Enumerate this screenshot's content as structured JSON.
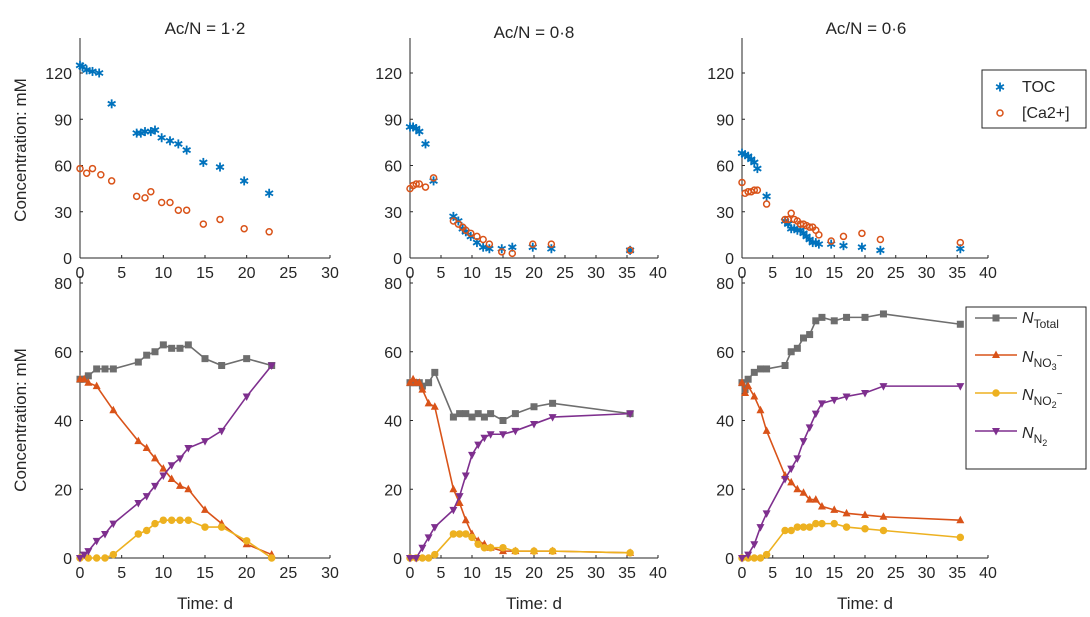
{
  "colors": {
    "toc": "#0072BD",
    "ca": "#D95319",
    "ntotal": "#6E6E6E",
    "nno3": "#D95319",
    "nno2": "#EDB120",
    "nn2": "#7E2F8E"
  },
  "legend_top": {
    "toc": "TOC",
    "ca": "[Ca2+]"
  },
  "legend_bottom": {
    "ntotal": {
      "main": "N",
      "sub": "Total",
      "sup": ""
    },
    "nno3": {
      "main": "N",
      "sub": "NO",
      "subsub": "3",
      "sup": "−"
    },
    "nno2": {
      "main": "N",
      "sub": "NO",
      "subsub": "2",
      "sup": "−"
    },
    "nn2": {
      "main": "N",
      "sub": "N",
      "subsub": "2",
      "sup": ""
    }
  },
  "y_label": "Concentration: mM",
  "x_label": "Time: d",
  "chart_data": [
    {
      "type": "scatter",
      "title": "Ac/N = 1·2",
      "xlim": [
        0,
        30
      ],
      "xticks": [
        0,
        5,
        10,
        15,
        20,
        25,
        30
      ],
      "ylim": [
        0,
        140
      ],
      "yticks": [
        0,
        30,
        60,
        90,
        120
      ],
      "series": [
        {
          "name": "TOC",
          "marker": "asterisk",
          "color": "toc",
          "x": [
            0,
            0.3,
            0.8,
            1.5,
            2.3,
            3.8,
            6.8,
            7.3,
            7.8,
            8.5,
            9,
            9.8,
            10.8,
            11.8,
            12.8,
            14.8,
            16.8,
            19.7,
            22.7
          ],
          "y": [
            125,
            124,
            122,
            121,
            120,
            100,
            81,
            81,
            82,
            82,
            83,
            78,
            76,
            74,
            70,
            62,
            59,
            50,
            42
          ]
        },
        {
          "name": "[Ca2+]",
          "marker": "circle",
          "color": "ca",
          "x": [
            0,
            0.8,
            1.5,
            2.5,
            3.8,
            6.8,
            7.8,
            8.5,
            9.8,
            10.8,
            11.8,
            12.8,
            14.8,
            16.8,
            19.7,
            22.7
          ],
          "y": [
            58,
            55,
            58,
            54,
            50,
            40,
            39,
            43,
            36,
            36,
            31,
            31,
            22,
            25,
            19,
            17
          ]
        }
      ]
    },
    {
      "type": "scatter",
      "title": "Ac/N = 0·8",
      "xlim": [
        0,
        40
      ],
      "xticks": [
        0,
        5,
        10,
        15,
        20,
        25,
        30,
        35,
        40
      ],
      "ylim": [
        0,
        140
      ],
      "yticks": [
        0,
        30,
        60,
        90,
        120
      ],
      "series": [
        {
          "name": "TOC",
          "marker": "asterisk",
          "color": "toc",
          "x": [
            0,
            0.5,
            1,
            1.5,
            2.5,
            3.8,
            7,
            7.8,
            8.5,
            9,
            9.8,
            10.8,
            11.8,
            12.8,
            14.8,
            16.5,
            19.8,
            22.8,
            35.5
          ],
          "y": [
            85,
            85,
            84,
            82,
            74,
            50,
            27,
            24,
            19,
            17,
            14,
            10,
            7,
            6,
            6,
            7,
            7,
            6,
            5
          ]
        },
        {
          "name": "[Ca2+]",
          "marker": "circle",
          "color": "ca",
          "x": [
            0,
            0.5,
            1,
            1.5,
            2.5,
            3.8,
            7,
            7.8,
            8.5,
            9,
            9.8,
            10.8,
            11.8,
            12.8,
            14.8,
            16.5,
            19.8,
            22.8,
            35.5
          ],
          "y": [
            45,
            47,
            48,
            48,
            46,
            52,
            24,
            22,
            20,
            18,
            16,
            14,
            12,
            9,
            4,
            3,
            9,
            9,
            5
          ]
        }
      ]
    },
    {
      "type": "scatter",
      "title": "Ac/N = 0·6",
      "xlim": [
        0,
        40
      ],
      "xticks": [
        0,
        5,
        10,
        15,
        20,
        25,
        30,
        35,
        40
      ],
      "ylim": [
        0,
        140
      ],
      "yticks": [
        0,
        30,
        60,
        90,
        120
      ],
      "series": [
        {
          "name": "TOC",
          "marker": "asterisk",
          "color": "toc",
          "x": [
            0,
            0.5,
            1,
            1.5,
            2,
            2.5,
            4,
            7,
            7.5,
            8,
            8.5,
            9,
            9.5,
            10,
            10.5,
            11,
            11.5,
            12,
            12.5,
            14.5,
            16.5,
            19.5,
            22.5,
            35.5
          ],
          "y": [
            68,
            67,
            66,
            64,
            62,
            58,
            40,
            24,
            22,
            19,
            19,
            18,
            18,
            16,
            14,
            12,
            10,
            10,
            9,
            9,
            8,
            7,
            5,
            6
          ]
        },
        {
          "name": "[Ca2+]",
          "marker": "circle",
          "color": "ca",
          "x": [
            0,
            0.5,
            1,
            1.5,
            2,
            2.5,
            4,
            7,
            7.5,
            8,
            8.5,
            9,
            9.5,
            10,
            10.5,
            11,
            11.5,
            12,
            12.5,
            14.5,
            16.5,
            19.5,
            22.5,
            35.5
          ],
          "y": [
            49,
            42,
            43,
            43,
            44,
            44,
            35,
            25,
            25,
            29,
            25,
            24,
            22,
            22,
            21,
            20,
            20,
            18,
            15,
            11,
            14,
            16,
            12,
            10
          ]
        }
      ]
    },
    {
      "type": "line",
      "title": "",
      "xlim": [
        0,
        30
      ],
      "xticks": [
        0,
        5,
        10,
        15,
        20,
        25,
        30
      ],
      "ylim": [
        0,
        80
      ],
      "yticks": [
        0,
        20,
        40,
        60,
        80
      ],
      "series": [
        {
          "name": "N_Total",
          "marker": "square",
          "color": "ntotal",
          "x": [
            0,
            0.5,
            1,
            2,
            3,
            4,
            7,
            8,
            9,
            10,
            11,
            12,
            13,
            15,
            17,
            20,
            23
          ],
          "y": [
            52,
            52,
            53,
            55,
            55,
            55,
            57,
            59,
            60,
            62,
            61,
            61,
            62,
            58,
            56,
            58,
            56
          ]
        },
        {
          "name": "N_NO3-",
          "marker": "triangle-up",
          "color": "nno3",
          "x": [
            0,
            0.5,
            1,
            2,
            4,
            7,
            8,
            9,
            10,
            11,
            12,
            13,
            15,
            17,
            20,
            23
          ],
          "y": [
            52,
            52,
            51,
            50,
            43,
            34,
            32,
            29,
            26,
            23,
            21,
            20,
            14,
            10,
            4,
            1
          ]
        },
        {
          "name": "N_NO2-",
          "marker": "circle",
          "color": "nno2",
          "x": [
            0,
            1,
            2,
            3,
            4,
            7,
            8,
            9,
            10,
            11,
            12,
            13,
            15,
            17,
            20,
            23
          ],
          "y": [
            0,
            0,
            0,
            0,
            1,
            7,
            8,
            10,
            11,
            11,
            11,
            11,
            9,
            9,
            5,
            0
          ]
        },
        {
          "name": "N_N2",
          "marker": "triangle-down",
          "color": "nn2",
          "x": [
            0,
            0.5,
            1,
            2,
            3,
            4,
            7,
            8,
            9,
            10,
            11,
            12,
            13,
            15,
            17,
            20,
            23
          ],
          "y": [
            0,
            1,
            2,
            5,
            7,
            10,
            16,
            18,
            21,
            24,
            27,
            29,
            32,
            34,
            37,
            47,
            56
          ]
        }
      ]
    },
    {
      "type": "line",
      "title": "",
      "xlim": [
        0,
        40
      ],
      "xticks": [
        0,
        5,
        10,
        15,
        20,
        25,
        30,
        35,
        40
      ],
      "ylim": [
        0,
        80
      ],
      "yticks": [
        0,
        20,
        40,
        60,
        80
      ],
      "series": [
        {
          "name": "N_Total",
          "marker": "square",
          "color": "ntotal",
          "x": [
            0,
            0.5,
            1,
            1.5,
            2,
            3,
            4,
            7,
            8,
            9,
            10,
            11,
            12,
            13,
            15,
            17,
            20,
            23,
            35.5
          ],
          "y": [
            51,
            51,
            51,
            51,
            50,
            51,
            54,
            41,
            42,
            42,
            41,
            42,
            41,
            42,
            40,
            42,
            44,
            45,
            42
          ]
        },
        {
          "name": "N_NO3-",
          "marker": "triangle-up",
          "color": "nno3",
          "x": [
            0,
            0.5,
            1,
            1.5,
            2,
            3,
            4,
            7,
            8,
            9,
            10,
            11,
            12,
            13,
            15,
            17,
            20,
            23,
            35.5
          ],
          "y": [
            51,
            52,
            51,
            51,
            49,
            45,
            44,
            20,
            16,
            11,
            7,
            5,
            4,
            3,
            2,
            2,
            2,
            2,
            1.5
          ]
        },
        {
          "name": "N_NO2-",
          "marker": "circle",
          "color": "nno2",
          "x": [
            0,
            1,
            2,
            3,
            4,
            7,
            8,
            9,
            10,
            11,
            12,
            13,
            15,
            17,
            20,
            23,
            35.5
          ],
          "y": [
            0,
            0,
            0,
            0,
            1,
            7,
            7,
            7,
            6,
            4,
            3,
            3,
            3,
            2,
            2,
            2,
            1.5
          ]
        },
        {
          "name": "N_N2",
          "marker": "triangle-down",
          "color": "nn2",
          "x": [
            0,
            1,
            2,
            3,
            4,
            7,
            8,
            9,
            10,
            11,
            12,
            13,
            15,
            17,
            20,
            23,
            35.5
          ],
          "y": [
            0,
            0,
            3,
            6,
            9,
            14,
            18,
            24,
            30,
            33,
            35,
            36,
            36,
            37,
            39,
            41,
            42
          ]
        }
      ]
    },
    {
      "type": "line",
      "title": "",
      "xlim": [
        0,
        40
      ],
      "xticks": [
        0,
        5,
        10,
        15,
        20,
        25,
        30,
        35,
        40
      ],
      "ylim": [
        0,
        80
      ],
      "yticks": [
        0,
        20,
        40,
        60,
        80
      ],
      "series": [
        {
          "name": "N_Total",
          "marker": "square",
          "color": "ntotal",
          "x": [
            0,
            0.5,
            1,
            2,
            3,
            4,
            7,
            8,
            9,
            10,
            11,
            12,
            13,
            15,
            17,
            20,
            23,
            35.5
          ],
          "y": [
            51,
            49,
            52,
            54,
            55,
            55,
            56,
            60,
            61,
            64,
            65,
            69,
            70,
            69,
            70,
            70,
            71,
            68
          ]
        },
        {
          "name": "N_NO3-",
          "marker": "triangle-up",
          "color": "nno3",
          "x": [
            0,
            0.5,
            1,
            2,
            3,
            4,
            7,
            8,
            9,
            10,
            11,
            12,
            13,
            15,
            17,
            20,
            23,
            35.5
          ],
          "y": [
            51,
            48,
            50,
            47,
            43,
            37,
            24,
            22,
            20,
            19,
            17,
            17,
            15,
            14,
            13,
            12.5,
            12,
            11
          ]
        },
        {
          "name": "N_NO2-",
          "marker": "circle",
          "color": "nno2",
          "x": [
            0,
            1,
            2,
            3,
            4,
            7,
            8,
            9,
            10,
            11,
            12,
            13,
            15,
            17,
            20,
            23,
            35.5
          ],
          "y": [
            0,
            0,
            0,
            0,
            1,
            8,
            8,
            9,
            9,
            9,
            10,
            10,
            10,
            9,
            8.5,
            8,
            6
          ]
        },
        {
          "name": "N_N2",
          "marker": "triangle-down",
          "color": "nn2",
          "x": [
            0,
            1,
            2,
            3,
            4,
            7,
            8,
            9,
            10,
            11,
            12,
            13,
            15,
            17,
            20,
            23,
            35.5
          ],
          "y": [
            0,
            1,
            4,
            9,
            13,
            23,
            26,
            29,
            34,
            38,
            42,
            45,
            46,
            47,
            48,
            50,
            50
          ]
        }
      ]
    }
  ]
}
